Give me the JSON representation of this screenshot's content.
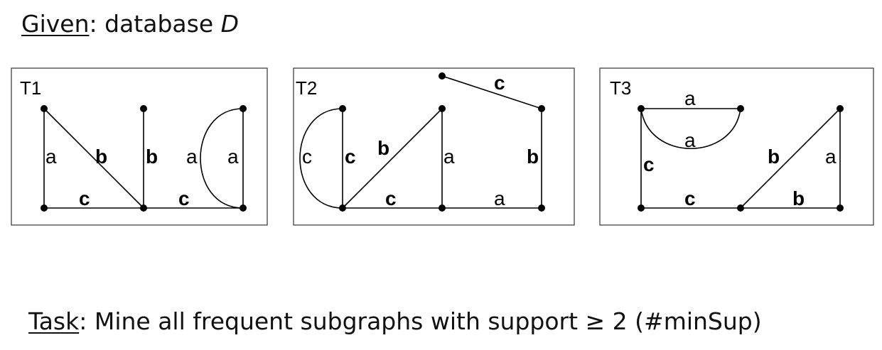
{
  "given": {
    "label": "Given",
    "colon": ":",
    "text": "database",
    "var": "D"
  },
  "task": {
    "label": "Task",
    "text": ": Mine all frequent subgraphs with support ≥ 2  (#minSup)"
  },
  "graphs": {
    "t1": {
      "title": "T1",
      "edge_labels": {
        "left_a": "a",
        "diag_b": "b",
        "vert_b": "b",
        "bottom_c1": "c",
        "bottom_c2": "c",
        "arc_a": "a",
        "right_a": "a"
      }
    },
    "t2": {
      "title": "T2",
      "edge_labels": {
        "top_c": "c",
        "arc_c": "c",
        "vert_c": "c",
        "diag_b": "b",
        "mid_a": "a",
        "right_b": "b",
        "bottom_c": "c",
        "bottom_a": "a"
      }
    },
    "t3": {
      "title": "T3",
      "edge_labels": {
        "top_a": "a",
        "arc_a": "a",
        "left_c": "c",
        "bottom_c": "c",
        "diag_b": "b",
        "right_a": "a",
        "bottom_b": "b"
      }
    }
  }
}
